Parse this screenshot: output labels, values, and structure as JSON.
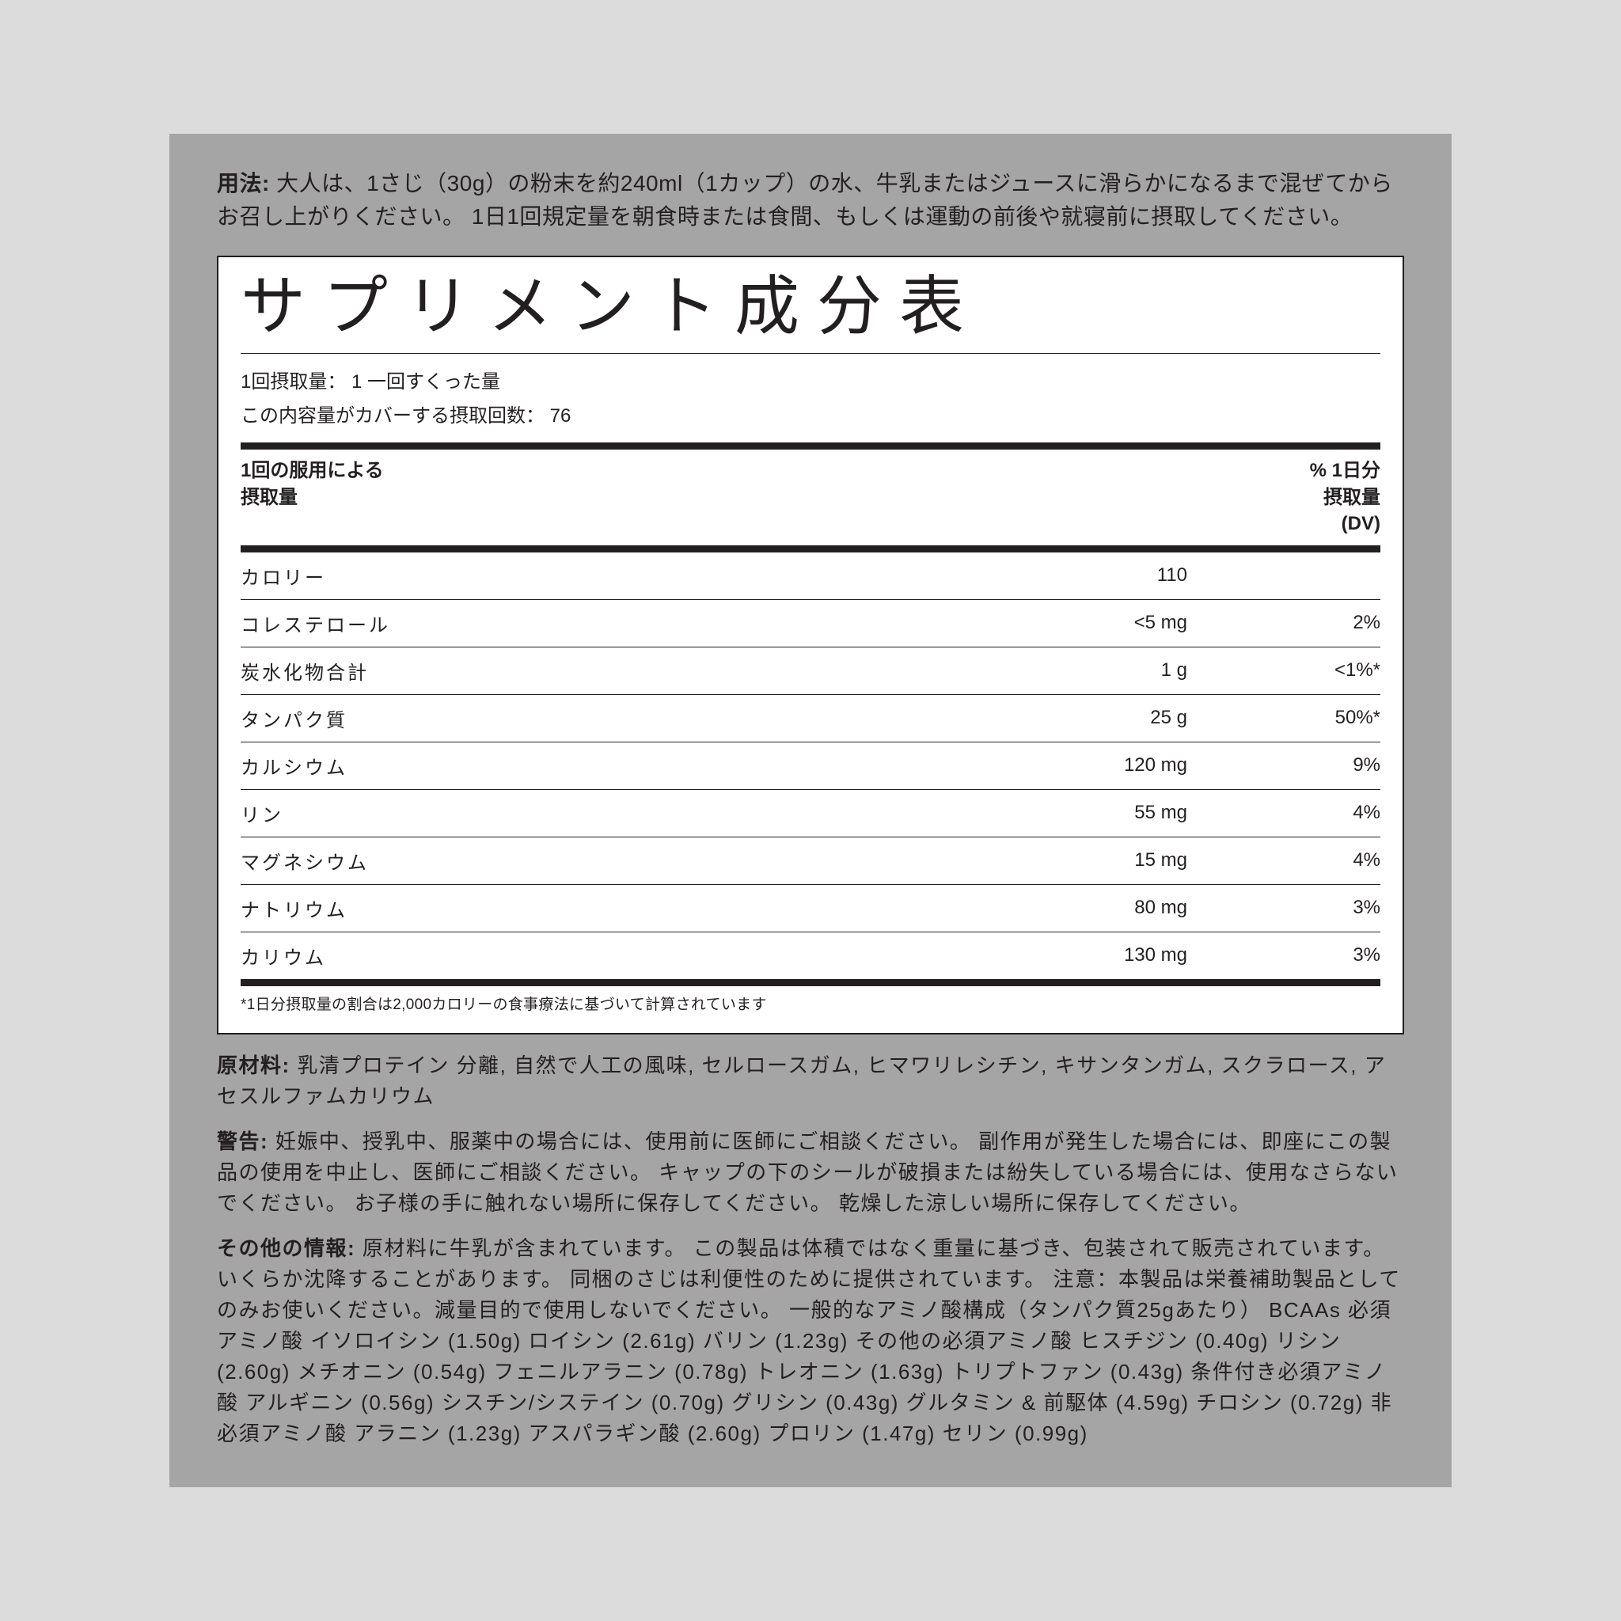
{
  "usage": {
    "label": "用法:",
    "text": " 大人は、1さじ（30g）の粉末を約240ml（1カップ）の水、牛乳またはジュースに滑らかになるまで混ぜてからお召し上がりください。 1日1回規定量を朝食時または食間、もしくは運動の前後や就寝前に摂取してください。"
  },
  "facts": {
    "title": "サプリメント成分表",
    "serving_size_label": "1回摂取量：",
    "serving_size_value": "1 一回すくった量",
    "servings_per_label": "この内容量がカバーする摂取回数：",
    "servings_per_value": "76",
    "header_left_line1": "1回の服用による",
    "header_left_line2": "摂取量",
    "header_right_line1": "% 1日分",
    "header_right_line2": "摂取量",
    "header_right_line3": "(DV)",
    "rows": [
      {
        "name": "カロリー",
        "amount": "110",
        "dv": ""
      },
      {
        "name": "コレステロール",
        "amount": "<5 mg",
        "dv": "2%"
      },
      {
        "name": "炭水化物合計",
        "amount": "1 g",
        "dv": "<1%*"
      },
      {
        "name": "タンパク質",
        "amount": "25 g",
        "dv": "50%*"
      },
      {
        "name": "カルシウム",
        "amount": "120 mg",
        "dv": "9%"
      },
      {
        "name": "リン",
        "amount": "55 mg",
        "dv": "4%"
      },
      {
        "name": "マグネシウム",
        "amount": "15 mg",
        "dv": "4%"
      },
      {
        "name": "ナトリウム",
        "amount": "80 mg",
        "dv": "3%"
      },
      {
        "name": "カリウム",
        "amount": "130 mg",
        "dv": "3%"
      }
    ],
    "footnote": "*1日分摂取量の割合は2,000カロリーの食事療法に基づいて計算されています"
  },
  "ingredients": {
    "label": "原材料:",
    "text": " 乳清プロテイン 分離, 自然で人工の風味, セルロースガム, ヒマワリレシチン, キサンタンガム, スクラロース, アセスルファムカリウム"
  },
  "warning": {
    "label": "警告:",
    "text": " 妊娠中、授乳中、服薬中の場合には、使用前に医師にご相談ください。 副作用が発生した場合には、即座にこの製品の使用を中止し、医師にご相談ください。 キャップの下のシールが破損または紛失している場合には、使用なさらないでください。 お子様の手に触れない場所に保存してください。 乾燥した涼しい場所に保存してください。"
  },
  "other": {
    "label": "その他の情報:",
    "text": " 原材料に牛乳が含まれています。 この製品は体積ではなく重量に基づき、包装されて販売されています。 いくらか沈降することがあります。 同梱のさじは利便性のために提供されています。 注意：本製品は栄養補助製品としてのみお使いください。減量目的で使用しないでください。 一般的なアミノ酸構成（タンパク質25gあたり） BCAAs 必須アミノ酸 イソロイシン (1.50g) ロイシン (2.61g) バリン (1.23g) その他の必須アミノ酸 ヒスチジン (0.40g) リシン (2.60g) メチオニン (0.54g) フェニルアラニン (0.78g) トレオニン (1.63g) トリプトファン (0.43g) 条件付き必須アミノ酸 アルギニン (0.56g) シスチン/システイン (0.70g) グリシン (0.43g) グルタミン & 前駆体 (4.59g) チロシン (0.72g) 非必須アミノ酸 アラニン (1.23g) アスパラギン酸 (2.60g) プロリン (1.47g) セリン (0.99g)"
  }
}
